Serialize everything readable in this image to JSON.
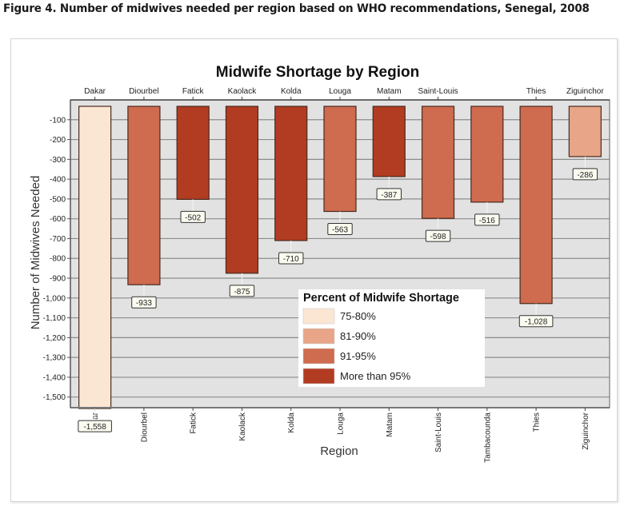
{
  "figure": {
    "caption": "Figure 4. Number of midwives needed per region based on WHO recommendations, Senegal, 2008"
  },
  "chart_data": {
    "type": "bar",
    "title": "Midwife Shortage by Region",
    "xlabel": "Region",
    "ylabel": "Number of Midwives Needed",
    "categories": [
      "Dakar",
      "Diourbel",
      "Fatick",
      "Kaolack",
      "Kolda",
      "Louga",
      "Matam",
      "Saint-Louis",
      "Tambacounda",
      "Thies",
      "Ziguinchor"
    ],
    "top_axis_labels": [
      "Dakar",
      "Diourbel",
      "Fatick",
      "Kaolack",
      "Kolda",
      "Louga",
      "Matam",
      "Saint-Louis",
      "",
      "Thies",
      "Ziguinchor"
    ],
    "bottom_axis_labels": [
      "ar",
      "Diourbel",
      "Fatick",
      "Kaolack",
      "Kolda",
      "Louga",
      "Matam",
      "Saint-Louis",
      "Tambacounda",
      "Thies",
      "Ziguinchor"
    ],
    "values": [
      -1558,
      -933,
      -502,
      -875,
      -710,
      -563,
      -387,
      -598,
      -516,
      -1028,
      -286
    ],
    "data_labels": [
      "-1,558",
      "-933",
      "-502",
      "-875",
      "-710",
      "-563",
      "-387",
      "-598",
      "-516",
      "-1,028",
      "-286"
    ],
    "shortage_category": [
      "75-80%",
      "91-95%",
      "More than 95%",
      "More than 95%",
      "More than 95%",
      "91-95%",
      "More than 95%",
      "91-95%",
      "91-95%",
      "91-95%",
      "81-90%"
    ],
    "ylim": [
      -1550,
      0
    ],
    "yticks": [
      -100,
      -200,
      -300,
      -400,
      -500,
      -600,
      -700,
      -800,
      -900,
      -1000,
      -1100,
      -1200,
      -1300,
      -1400,
      -1500
    ],
    "ytick_labels": [
      "-100",
      "-200",
      "-300",
      "-400",
      "-500",
      "-600",
      "-700",
      "-800",
      "-900",
      "-1,000",
      "-1,100",
      "-1,200",
      "-1,300",
      "-1,400",
      "-1,500"
    ],
    "grid": true,
    "legend": {
      "title": "Percent of Midwife Shortage",
      "placement": "center-right",
      "entries": [
        {
          "label": "75-80%",
          "color": "#fbe6d4"
        },
        {
          "label": "81-90%",
          "color": "#e8a587"
        },
        {
          "label": "91-95%",
          "color": "#cf6b4e"
        },
        {
          "label": "More than 95%",
          "color": "#b13c22"
        }
      ]
    }
  },
  "colors": {
    "plot_background": "#e2e2e2",
    "gridline": "#8c8c8c",
    "bar_outline": "#4a2a20"
  }
}
